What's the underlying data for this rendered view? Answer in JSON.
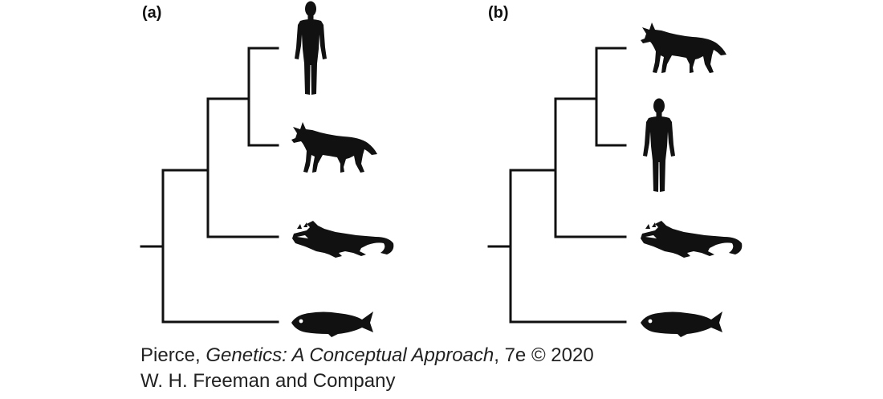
{
  "panels": [
    {
      "label": "(a)",
      "taxa": [
        "human-icon",
        "wolf-icon",
        "crocodile-icon",
        "fish-icon"
      ]
    },
    {
      "label": "(b)",
      "taxa": [
        "wolf-icon",
        "human-icon",
        "crocodile-icon",
        "fish-icon"
      ]
    }
  ],
  "credit": {
    "author": "Pierce, ",
    "book": "Genetics: A Conceptual Approach",
    "edition": ", 7e © 2020",
    "publisher": "W. H. Freeman and Company"
  }
}
